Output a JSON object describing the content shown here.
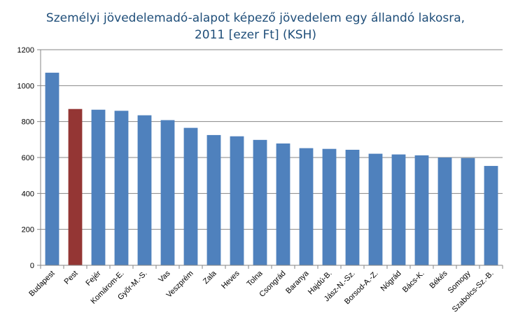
{
  "chart_data": {
    "type": "bar",
    "title_line1": "Személyi jövedelemadó-alapot képező jövedelem egy állandó lakosra,",
    "title_line2": "2011 [ezer Ft] (KSH)",
    "xlabel": "",
    "ylabel": "",
    "ylim": [
      0,
      1200
    ],
    "yticks": [
      0,
      200,
      400,
      600,
      800,
      1000,
      1200
    ],
    "grid": true,
    "legend": "none",
    "categories": [
      "Budapest",
      "Pest",
      "Fejér",
      "Komárom-E.",
      "Győr-M.-S.",
      "Vas",
      "Veszprém",
      "Zala",
      "Heves",
      "Tolna",
      "Csongrád",
      "Baranya",
      "Hajdú-B.",
      "Jász-N.-Sz.",
      "Borsod-A.-Z.",
      "Nógrád",
      "Bács-K.",
      "Békés",
      "Somogy",
      "Szabolcs-Sz.-B."
    ],
    "values": [
      1072,
      870,
      866,
      860,
      835,
      808,
      765,
      725,
      718,
      698,
      678,
      652,
      648,
      643,
      621,
      617,
      612,
      600,
      597,
      553
    ],
    "colors": {
      "default": "#4f81bd",
      "highlight": "#943634",
      "highlight_category": "Pest",
      "grid": "#868686",
      "axis": "#868686"
    }
  }
}
